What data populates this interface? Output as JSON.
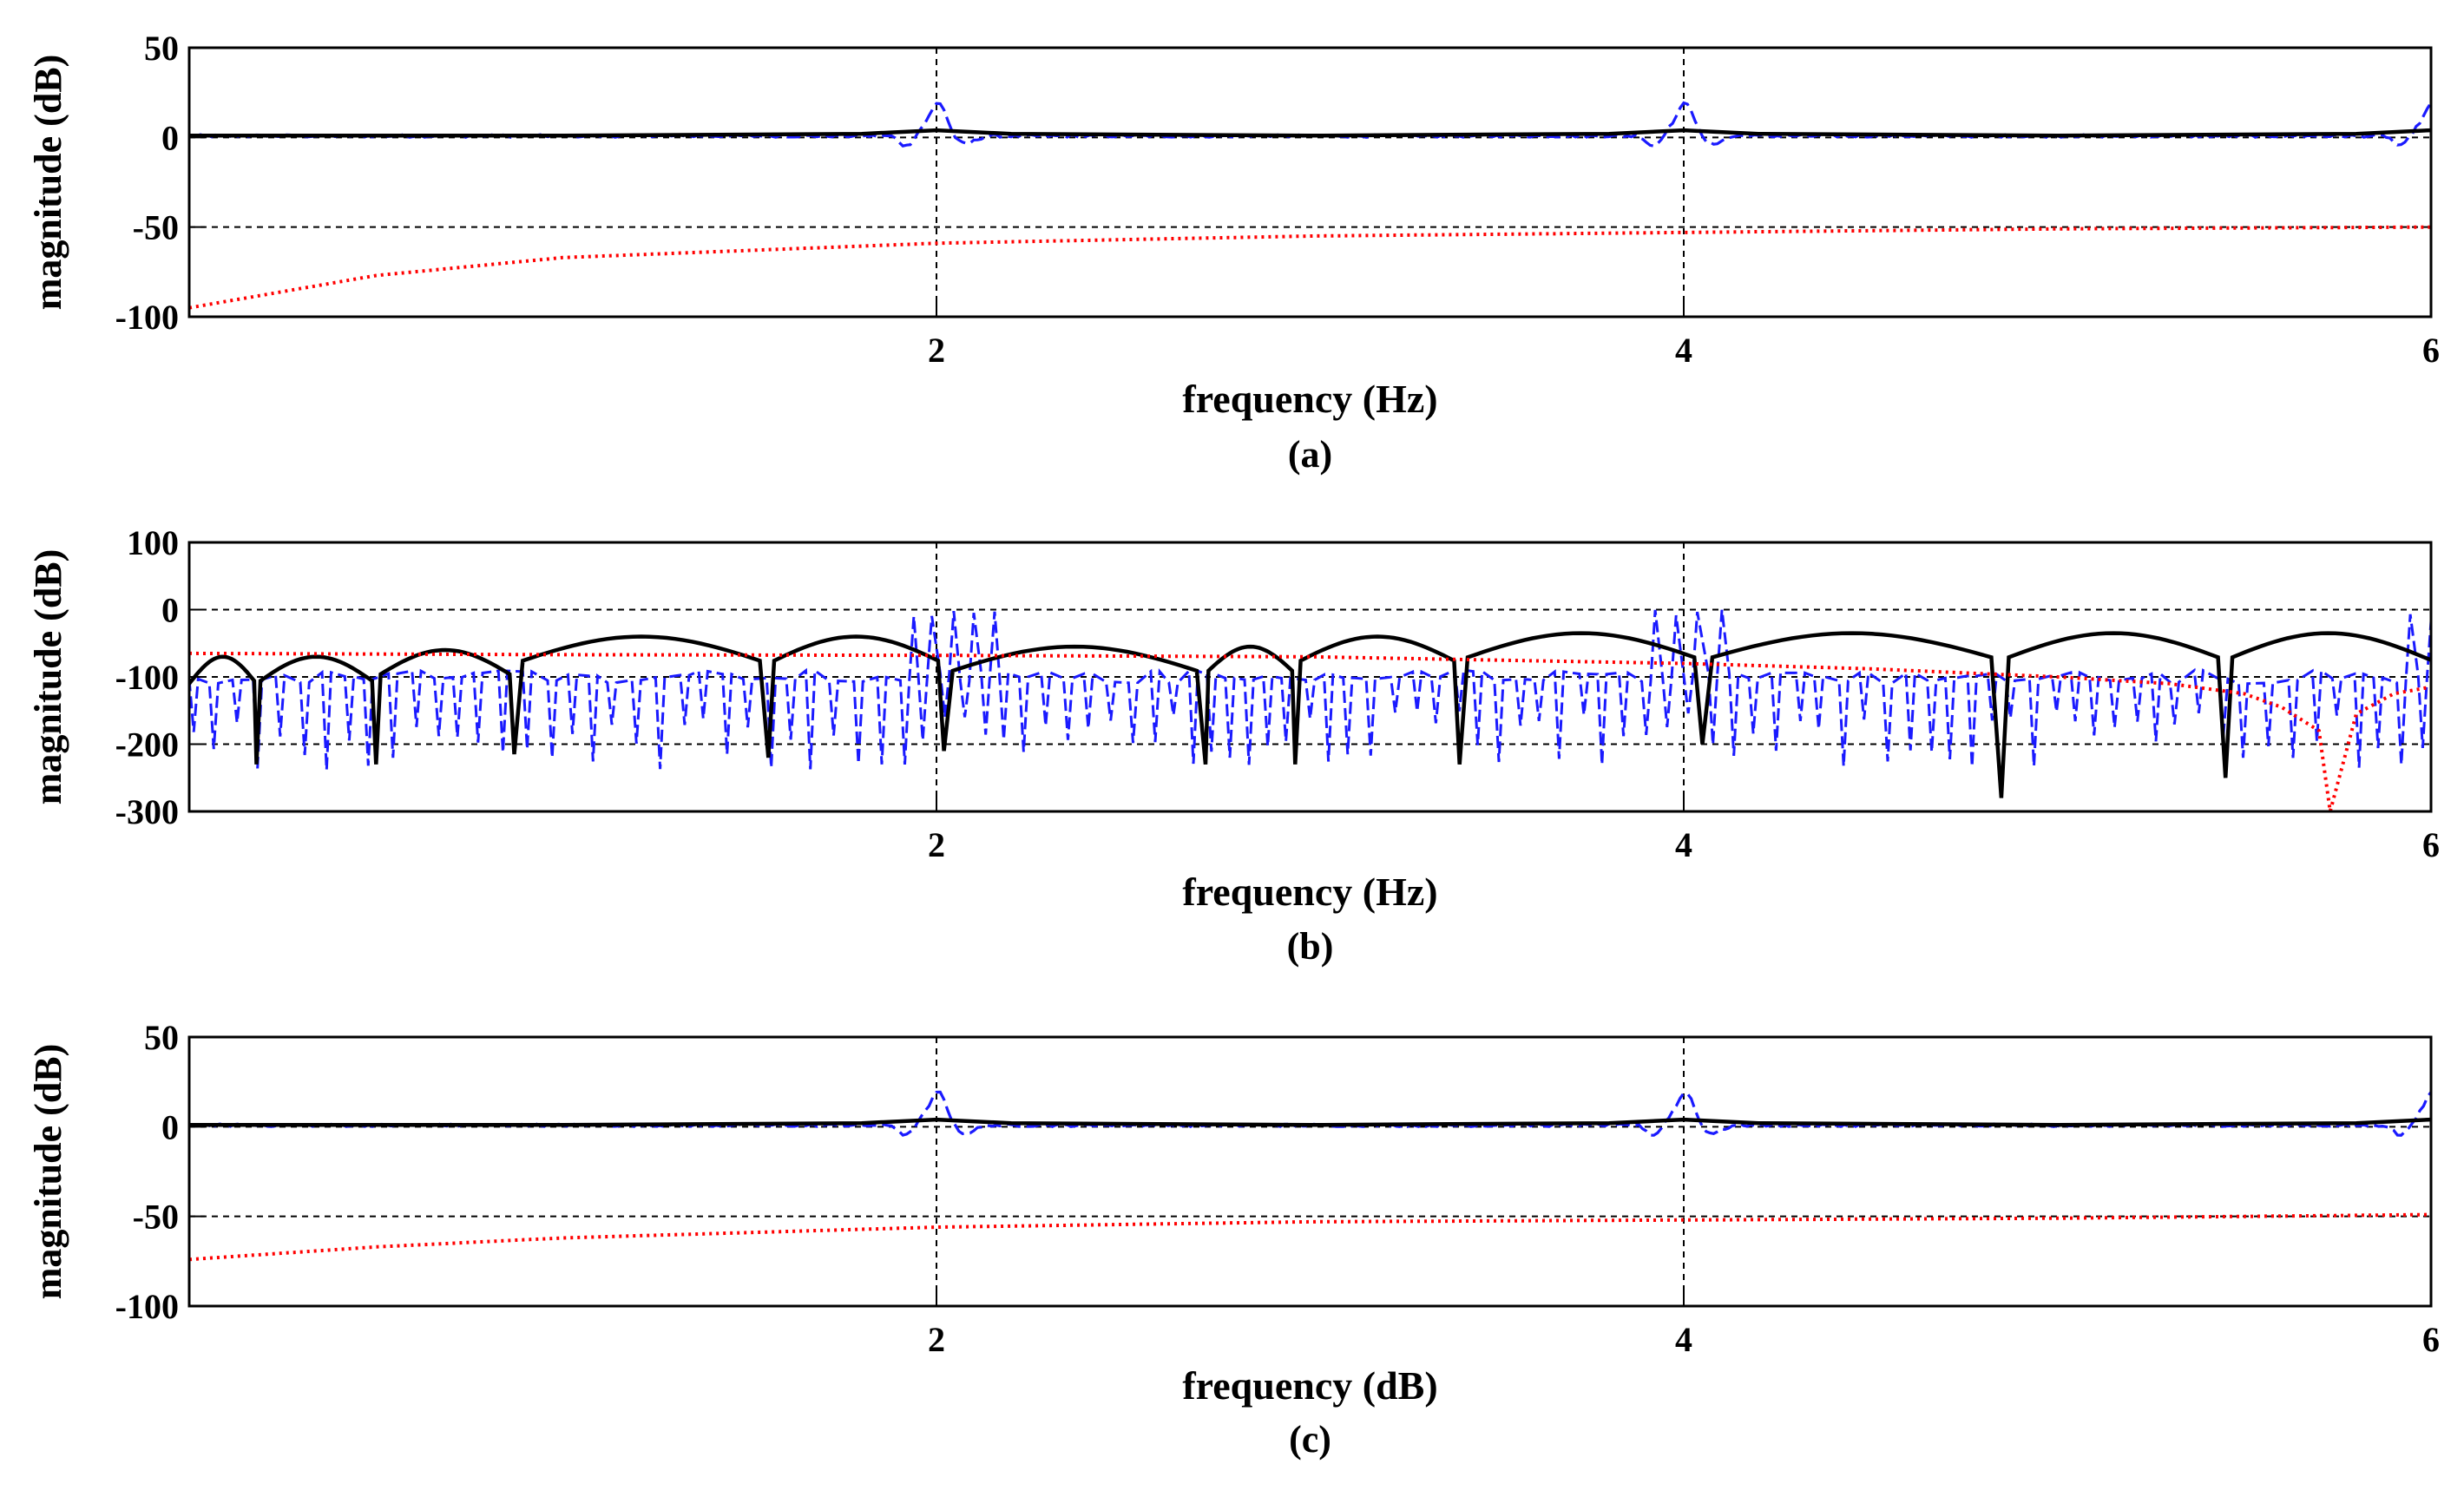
{
  "figure": {
    "panels": [
      {
        "caption": "(a)",
        "title": "",
        "type": "line",
        "xlabel": "frequency (Hz)",
        "ylabel": "magnitude (dB)",
        "xlim": [
          0,
          6
        ],
        "ylim": [
          -100,
          50
        ],
        "xticks": [
          2,
          4,
          6
        ],
        "yticks": [
          -100,
          -50,
          0,
          50
        ],
        "grid": true,
        "profile": "flat"
      },
      {
        "caption": "(b)",
        "title": "",
        "type": "line",
        "xlabel": "frequency (Hz)",
        "ylabel": "magnitude (dB)",
        "xlim": [
          0,
          6
        ],
        "ylim": [
          -300,
          100
        ],
        "xticks": [
          2,
          4,
          6
        ],
        "yticks": [
          -300,
          -200,
          -100,
          0,
          100
        ],
        "grid": true,
        "profile": "lobes"
      },
      {
        "caption": "(c)",
        "title": "",
        "type": "line",
        "xlabel": "frequency (dB)",
        "ylabel": "magnitude (dB)",
        "xlim": [
          0,
          6
        ],
        "ylim": [
          -100,
          50
        ],
        "xticks": [
          2,
          4,
          6
        ],
        "yticks": [
          -100,
          -50,
          0,
          50
        ],
        "grid": true,
        "profile": "flat"
      }
    ]
  },
  "chart_data": [
    {
      "type": "line",
      "caption": "(a)",
      "xlabel": "frequency (Hz)",
      "ylabel": "magnitude (dB)",
      "xlim": [
        0,
        6
      ],
      "ylim": [
        -100,
        50
      ],
      "series": [
        {
          "name": "solid black",
          "color": "#000000",
          "style": "solid",
          "x": [
            0,
            1,
            1.8,
            2,
            2.2,
            3,
            3.8,
            4,
            4.2,
            5,
            5.8,
            6
          ],
          "y": [
            1,
            1,
            2,
            4,
            2,
            1,
            2,
            4,
            2,
            1,
            2,
            4
          ]
        },
        {
          "name": "dashed blue",
          "color": "#1a1aff",
          "style": "dashed",
          "x": [
            0,
            1.8,
            1.9,
            2,
            2.1,
            2.2,
            3.8,
            3.9,
            4,
            4.1,
            4.2,
            5.8,
            5.9,
            6
          ],
          "y": [
            1,
            0,
            -4,
            18,
            -4,
            0,
            0,
            -4,
            18,
            -4,
            0,
            0,
            -4,
            20
          ]
        },
        {
          "name": "dotted red",
          "color": "#ff0000",
          "style": "dotted",
          "x": [
            0,
            0.5,
            1,
            2,
            3,
            4,
            5,
            6
          ],
          "y": [
            -95,
            -77,
            -67,
            -59,
            -55,
            -53,
            -51,
            -50
          ]
        }
      ]
    },
    {
      "type": "line",
      "caption": "(b)",
      "xlabel": "frequency (Hz)",
      "ylabel": "magnitude (dB)",
      "xlim": [
        0,
        6
      ],
      "ylim": [
        -300,
        100
      ],
      "series": [
        {
          "name": "solid black",
          "color": "#000000",
          "style": "solid",
          "notches_x": [
            0.18,
            0.5,
            0.87,
            1.55,
            2.02,
            2.72,
            2.96,
            3.4,
            4.05,
            4.85,
            5.45
          ],
          "notches_y": [
            -230,
            -230,
            -215,
            -220,
            -210,
            -230,
            -230,
            -230,
            -200,
            -280,
            -250
          ],
          "lobe_peak_y": [
            -70,
            -70,
            -60,
            -40,
            -40,
            -55,
            -55,
            -40,
            -35,
            -35,
            -35
          ]
        },
        {
          "name": "dashed blue",
          "color": "#1a1aff",
          "style": "dashed",
          "peaks_x": [
            2,
            4,
            6
          ],
          "peaks_y": [
            0,
            0,
            0
          ],
          "floor_y": -200
        },
        {
          "name": "dotted red",
          "color": "#ff0000",
          "style": "dotted",
          "x": [
            0,
            1,
            2,
            3,
            4,
            4.5,
            5,
            5.3,
            5.5,
            5.6,
            5.7,
            5.73,
            5.8,
            5.9,
            6
          ],
          "y": [
            -65,
            -67,
            -68,
            -70,
            -80,
            -88,
            -100,
            -110,
            -125,
            -145,
            -180,
            -300,
            -155,
            -125,
            -115
          ]
        }
      ]
    },
    {
      "type": "line",
      "caption": "(c)",
      "xlabel": "frequency (dB)",
      "ylabel": "magnitude (dB)",
      "xlim": [
        0,
        6
      ],
      "ylim": [
        -100,
        50
      ],
      "series": [
        {
          "name": "solid black",
          "color": "#000000",
          "style": "solid",
          "x": [
            0,
            1,
            1.8,
            2,
            2.2,
            3,
            3.8,
            4,
            4.2,
            5,
            5.8,
            6
          ],
          "y": [
            1,
            1,
            2,
            4,
            2,
            1,
            2,
            4,
            2,
            1,
            2,
            4
          ]
        },
        {
          "name": "dashed blue",
          "color": "#1a1aff",
          "style": "dashed",
          "x": [
            0,
            1.8,
            1.9,
            2,
            2.1,
            2.2,
            3.8,
            3.9,
            4,
            4.1,
            4.2,
            5.8,
            5.9,
            6
          ],
          "y": [
            1,
            0,
            -4,
            18,
            -4,
            0,
            0,
            -4,
            18,
            -4,
            0,
            0,
            -4,
            20
          ]
        },
        {
          "name": "dotted red",
          "color": "#ff0000",
          "style": "dotted",
          "x": [
            0,
            0.5,
            1,
            2,
            3,
            4,
            5,
            6
          ],
          "y": [
            -74,
            -67,
            -62,
            -56,
            -53,
            -52,
            -51,
            -49
          ]
        }
      ]
    }
  ]
}
